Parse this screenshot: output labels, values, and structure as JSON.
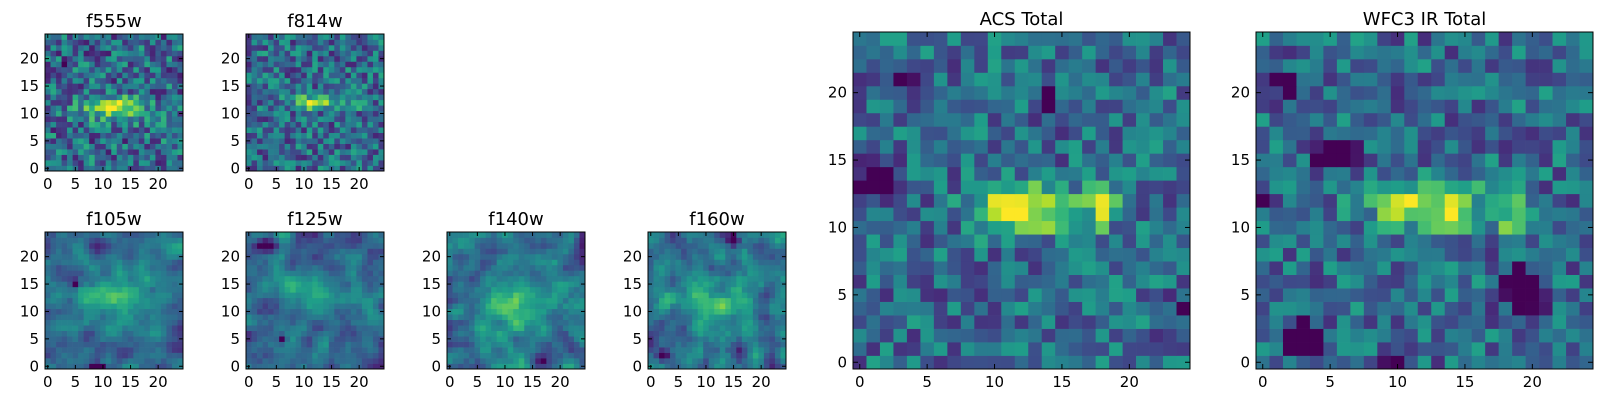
{
  "chart_data": [
    {
      "id": "f555w",
      "type": "heatmap",
      "title": "f555w",
      "grid_size": 25,
      "xticks": [
        "0",
        "5",
        "10",
        "15",
        "20"
      ],
      "yticks": [
        "0",
        "5",
        "10",
        "15",
        "20"
      ],
      "colormap": "viridis",
      "seed": 11,
      "noise": 0.55,
      "texture": "pixel",
      "blobs": [
        [
          12,
          11,
          4.0,
          1.5,
          0.55
        ]
      ],
      "holes": [
        [
          3,
          19,
          0.5,
          0.5,
          0.6
        ]
      ]
    },
    {
      "id": "f814w",
      "type": "heatmap",
      "title": "f814w",
      "grid_size": 25,
      "xticks": [
        "0",
        "5",
        "10",
        "15",
        "20"
      ],
      "yticks": [
        "0",
        "5",
        "10",
        "15",
        "20"
      ],
      "colormap": "viridis",
      "seed": 23,
      "noise": 0.5,
      "texture": "pixel",
      "blobs": [
        [
          12,
          12,
          2.5,
          0.8,
          0.65
        ],
        [
          19,
          12,
          0.8,
          1.0,
          0.4
        ]
      ],
      "holes": []
    },
    {
      "id": "f105w",
      "type": "heatmap",
      "title": "f105w",
      "grid_size": 25,
      "xticks": [
        "0",
        "5",
        "10",
        "15",
        "20"
      ],
      "yticks": [
        "0",
        "5",
        "10",
        "15",
        "20"
      ],
      "colormap": "viridis",
      "seed": 37,
      "noise": 0.5,
      "texture": "smooth",
      "blobs": [
        [
          12,
          12,
          5.0,
          3.0,
          0.3
        ]
      ],
      "holes": [
        [
          9,
          0,
          1.0,
          0.5,
          0.8
        ],
        [
          5,
          15,
          0.6,
          0.6,
          0.5
        ]
      ]
    },
    {
      "id": "f125w",
      "type": "heatmap",
      "title": "f125w",
      "grid_size": 25,
      "xticks": [
        "0",
        "5",
        "10",
        "15",
        "20"
      ],
      "yticks": [
        "0",
        "5",
        "10",
        "15",
        "20"
      ],
      "colormap": "viridis",
      "seed": 41,
      "noise": 0.5,
      "texture": "smooth",
      "blobs": [
        [
          13,
          13,
          4.0,
          2.0,
          0.3
        ]
      ],
      "holes": [
        [
          3,
          22,
          1.5,
          0.8,
          0.6
        ],
        [
          6,
          5,
          0.6,
          0.6,
          0.5
        ]
      ]
    },
    {
      "id": "f140w",
      "type": "heatmap",
      "title": "f140w",
      "grid_size": 25,
      "xticks": [
        "0",
        "5",
        "10",
        "15",
        "20"
      ],
      "yticks": [
        "0",
        "5",
        "10",
        "15",
        "20"
      ],
      "colormap": "viridis",
      "seed": 53,
      "noise": 0.55,
      "texture": "smooth",
      "blobs": [
        [
          12,
          10,
          5.0,
          4.0,
          0.3
        ]
      ],
      "holes": [
        [
          17,
          1,
          0.6,
          0.6,
          0.6
        ]
      ]
    },
    {
      "id": "f160w",
      "type": "heatmap",
      "title": "f160w",
      "grid_size": 25,
      "xticks": [
        "0",
        "5",
        "10",
        "15",
        "20"
      ],
      "yticks": [
        "0",
        "5",
        "10",
        "15",
        "20"
      ],
      "colormap": "viridis",
      "seed": 67,
      "noise": 0.55,
      "texture": "smooth",
      "blobs": [
        [
          12,
          12,
          5.0,
          4.0,
          0.2
        ]
      ],
      "holes": [
        [
          2,
          2,
          0.8,
          0.8,
          0.6
        ],
        [
          15,
          23,
          0.6,
          0.6,
          0.5
        ]
      ]
    },
    {
      "id": "acs-total",
      "type": "heatmap",
      "title": "ACS Total",
      "grid_size": 25,
      "xticks": [
        "0",
        "5",
        "10",
        "15",
        "20"
      ],
      "yticks": [
        "0",
        "5",
        "10",
        "15",
        "20"
      ],
      "colormap": "viridis",
      "seed": 79,
      "noise": 0.45,
      "texture": "pixel",
      "blobs": [
        [
          12.5,
          11.5,
          2.5,
          1.2,
          0.75
        ],
        [
          18,
          11.5,
          0.7,
          1.0,
          0.55
        ]
      ],
      "holes": [
        [
          1.5,
          13.5,
          1.0,
          0.8,
          0.8
        ],
        [
          3.5,
          21.5,
          0.5,
          0.5,
          0.7
        ],
        [
          14,
          19.5,
          0.5,
          0.5,
          0.7
        ],
        [
          24,
          4,
          0.5,
          0.5,
          0.7
        ]
      ]
    },
    {
      "id": "wfc3-ir-total",
      "type": "heatmap",
      "title": "WFC3 IR Total",
      "grid_size": 25,
      "xticks": [
        "0",
        "5",
        "10",
        "15",
        "20"
      ],
      "yticks": [
        "0",
        "5",
        "10",
        "15",
        "20"
      ],
      "colormap": "viridis",
      "seed": 97,
      "noise": 0.45,
      "texture": "pixel",
      "blobs": [
        [
          12.5,
          11.5,
          3.0,
          1.2,
          0.6
        ],
        [
          18.5,
          11,
          0.6,
          1.0,
          0.5
        ]
      ],
      "holes": [
        [
          5.5,
          15.5,
          1.0,
          0.6,
          0.8
        ],
        [
          19.5,
          5.5,
          1.0,
          1.0,
          0.8
        ],
        [
          1.5,
          20.5,
          1.0,
          0.6,
          0.6
        ],
        [
          3,
          2,
          1.0,
          1.0,
          0.6
        ],
        [
          0,
          12,
          0.5,
          0.5,
          0.7
        ],
        [
          10,
          0,
          0.6,
          0.5,
          0.7
        ]
      ]
    }
  ]
}
